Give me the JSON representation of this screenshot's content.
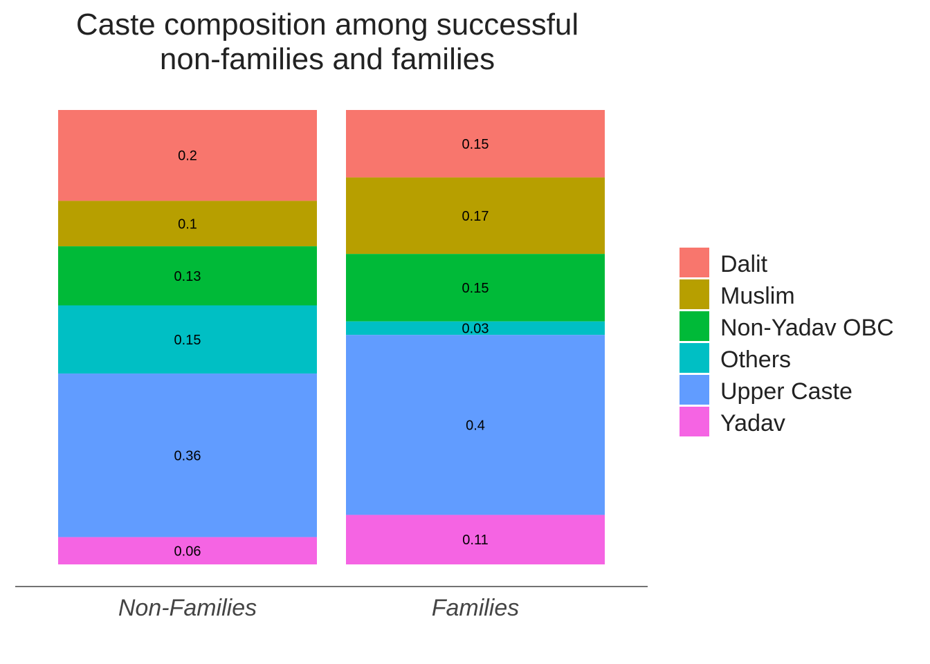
{
  "chart_data": {
    "type": "bar",
    "stacked": true,
    "title_lines": [
      "Caste composition among successful",
      "non-families and families"
    ],
    "xlabel": "",
    "ylabel": "",
    "categories": [
      "Non-Families",
      "Families"
    ],
    "series": [
      {
        "name": "Dalit",
        "color": "#F8766D",
        "values": [
          0.2,
          0.15
        ],
        "labels": [
          "0.2",
          "0.15"
        ]
      },
      {
        "name": "Muslim",
        "color": "#B79F00",
        "values": [
          0.1,
          0.17
        ],
        "labels": [
          "0.1",
          "0.17"
        ]
      },
      {
        "name": "Non-Yadav OBC",
        "color": "#00BA38",
        "values": [
          0.13,
          0.15
        ],
        "labels": [
          "0.13",
          "0.15"
        ]
      },
      {
        "name": "Others",
        "color": "#00BFC4",
        "values": [
          0.15,
          0.03
        ],
        "labels": [
          "0.15",
          "0.03"
        ]
      },
      {
        "name": "Upper Caste",
        "color": "#619CFF",
        "values": [
          0.36,
          0.4
        ],
        "labels": [
          "0.36",
          "0.4"
        ]
      },
      {
        "name": "Yadav",
        "color": "#F564E3",
        "values": [
          0.06,
          0.11
        ],
        "labels": [
          "0.06",
          "0.11"
        ]
      }
    ],
    "ylim": [
      0,
      1
    ],
    "grid": false,
    "legend_position": "right"
  }
}
